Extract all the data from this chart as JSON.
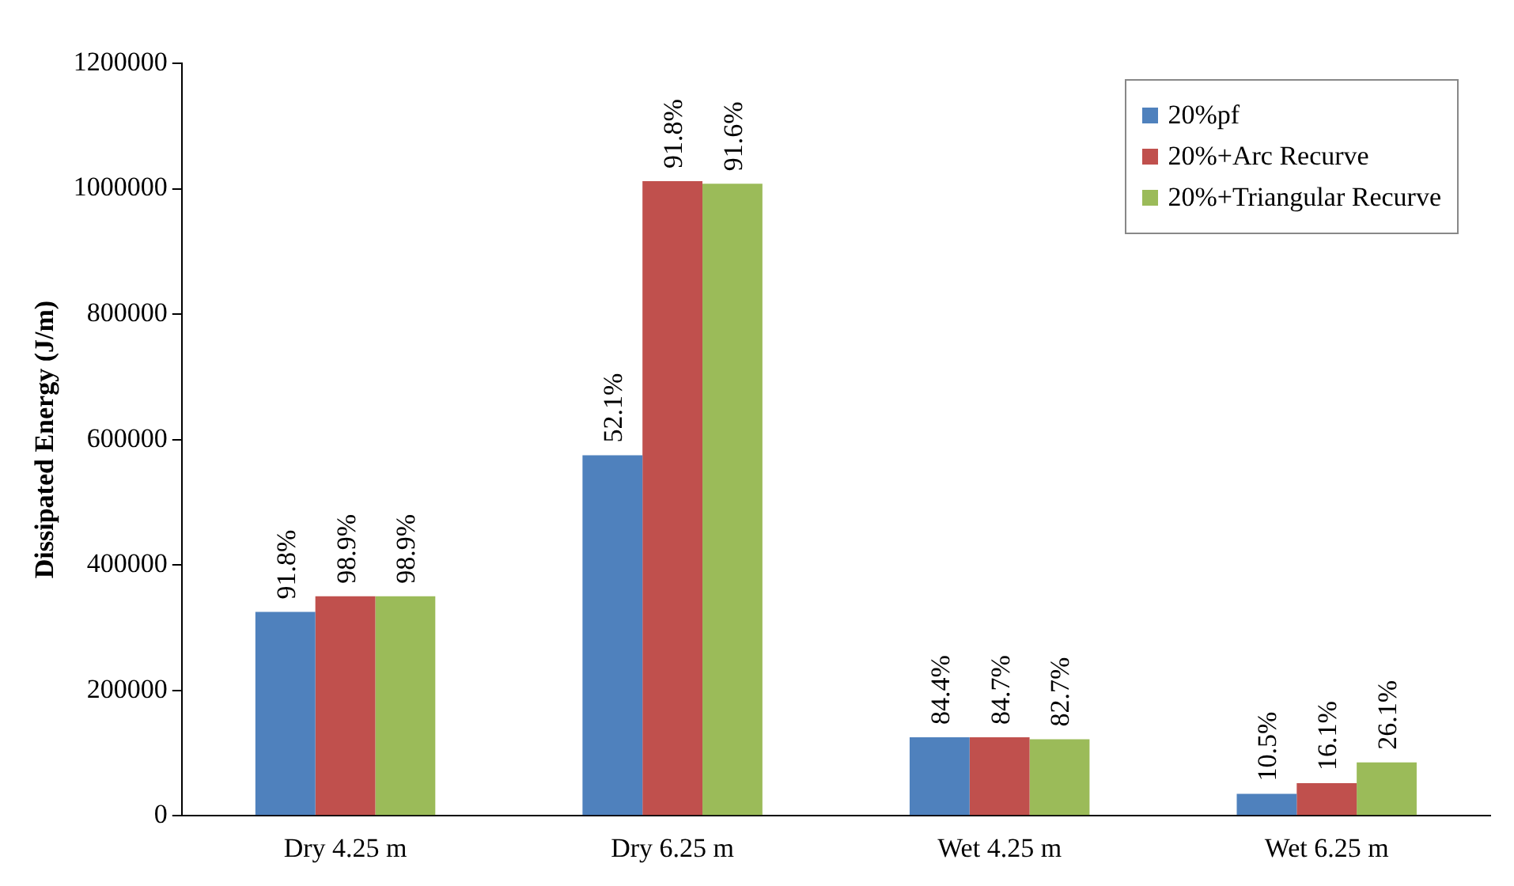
{
  "chart_data": {
    "type": "bar",
    "ylabel": "Dissipated Energy (J/m)",
    "categories": [
      "Dry 4.25 m",
      "Dry 6.25 m",
      "Wet 4.25 m",
      "Wet 6.25 m"
    ],
    "series": [
      {
        "name": "20%pf",
        "color": "#4f81bd",
        "values": [
          325000,
          575000,
          125000,
          35000
        ]
      },
      {
        "name": "20%+Arc Recurve",
        "color": "#c0504d",
        "values": [
          350000,
          1012000,
          125000,
          52000
        ]
      },
      {
        "name": "20%+Triangular Recurve",
        "color": "#9bbb59",
        "values": [
          350000,
          1008000,
          122000,
          85000
        ]
      }
    ],
    "annotations": [
      "91.8%",
      "98.9%",
      "98.9%",
      "52.1%",
      "91.8%",
      "91.6%",
      "84.4%",
      "84.7%",
      "82.7%",
      "10.5%",
      "16.1%",
      "26.1%"
    ],
    "ylim": [
      0,
      1200000
    ],
    "yticks": [
      0,
      200000,
      400000,
      600000,
      800000,
      1000000,
      1200000
    ],
    "grid": false,
    "legend": "top right"
  }
}
